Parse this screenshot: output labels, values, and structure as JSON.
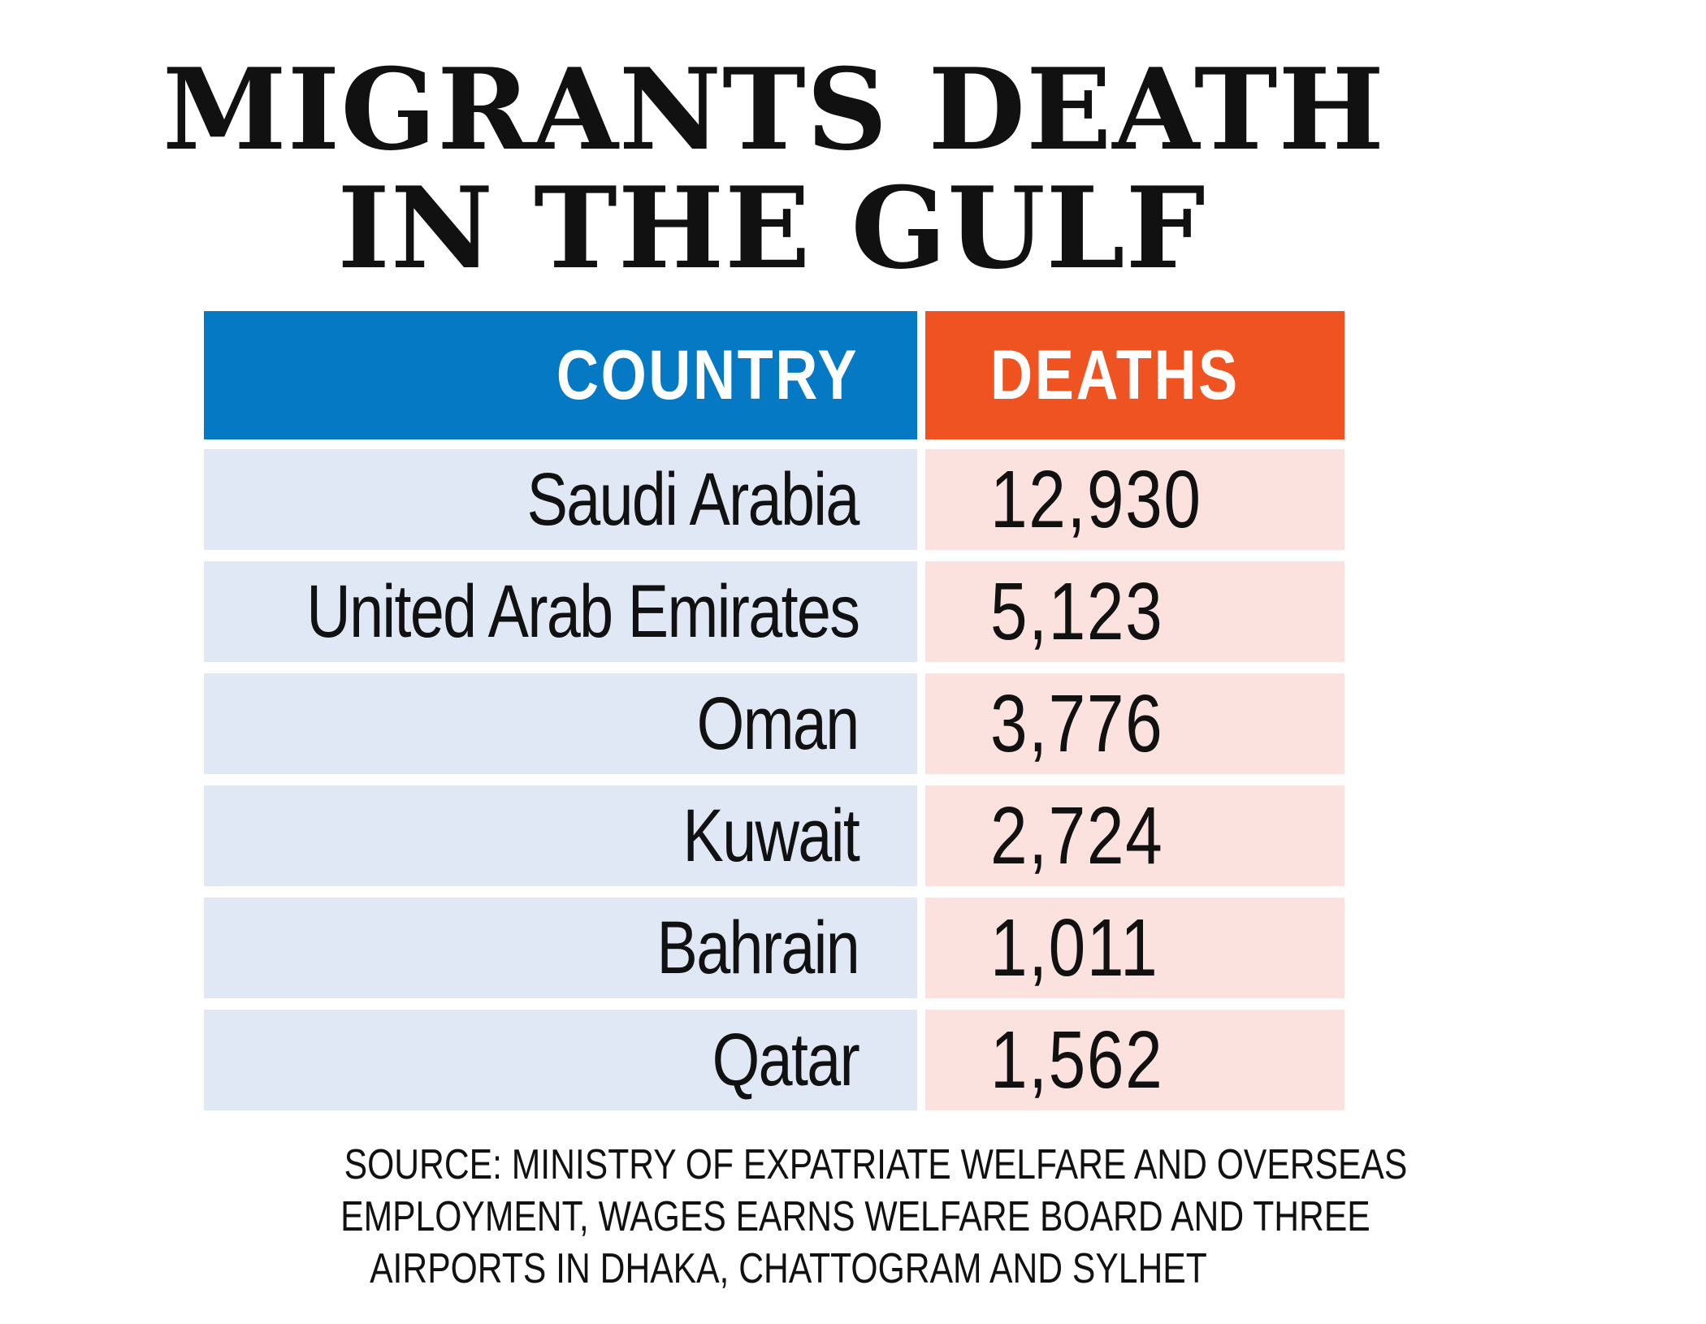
{
  "chart_data": {
    "type": "table",
    "title": "MIGRANTS DEATH IN THE GULF",
    "title_lines": [
      "MIGRANTS DEATH",
      "IN THE GULF"
    ],
    "columns": [
      "COUNTRY",
      "DEATHS"
    ],
    "rows": [
      {
        "country": "Saudi Arabia",
        "deaths": "12,930"
      },
      {
        "country": "United Arab Emirates",
        "deaths": "5,123"
      },
      {
        "country": "Oman",
        "deaths": "3,776"
      },
      {
        "country": "Kuwait",
        "deaths": "2,724"
      },
      {
        "country": "Bahrain",
        "deaths": "1,011"
      },
      {
        "country": "Qatar",
        "deaths": "1,562"
      }
    ],
    "categories": [
      "Saudi Arabia",
      "United Arab Emirates",
      "Oman",
      "Kuwait",
      "Bahrain",
      "Qatar"
    ],
    "values": [
      12930,
      5123,
      3776,
      2724,
      1011,
      1562
    ],
    "source_lines": [
      "SOURCE: MINISTRY OF EXPATRIATE WELFARE AND OVERSEAS",
      "EMPLOYMENT, WAGES EARNS WELFARE BOARD AND THREE",
      "AIRPORTS IN DHAKA, CHATTOGRAM AND SYLHET"
    ]
  },
  "colors": {
    "country_header": "#0579c3",
    "deaths_header": "#ef5322",
    "country_cell": "#dfe8f4",
    "deaths_cell": "#fbe2df",
    "text": "#111111"
  }
}
